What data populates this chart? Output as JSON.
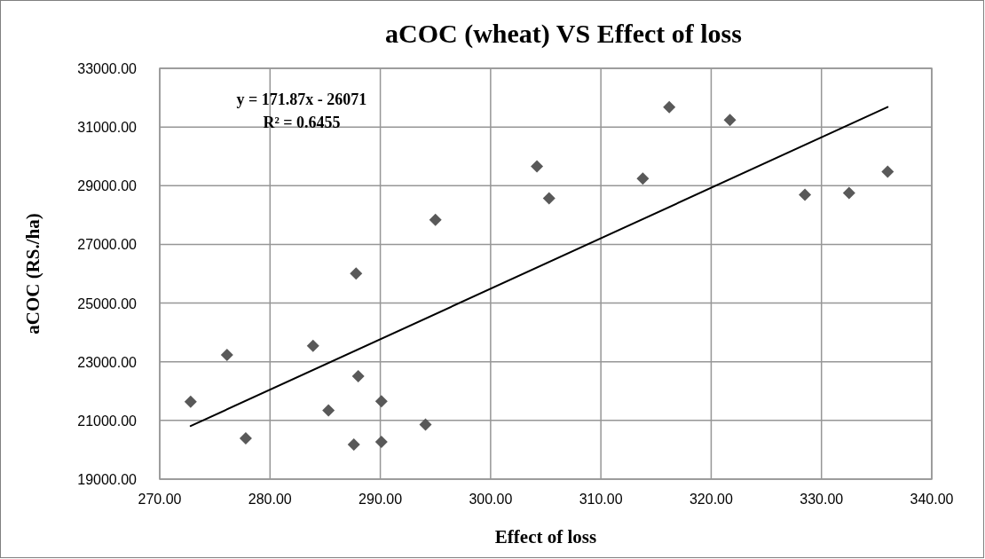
{
  "chart_data": {
    "type": "scatter",
    "title": "aCOC (wheat)  VS Effect of loss",
    "xlabel": "Effect of loss",
    "ylabel": "aCOC (RS./ha)",
    "annotations": [
      "y = 171.87x - 26071",
      "R² = 0.6455"
    ],
    "xlim": [
      270,
      340
    ],
    "ylim": [
      19000,
      33000
    ],
    "xticks": [
      {
        "value": 270,
        "label": "270.00"
      },
      {
        "value": 280,
        "label": "280.00"
      },
      {
        "value": 290,
        "label": "290.00"
      },
      {
        "value": 300,
        "label": "300.00"
      },
      {
        "value": 310,
        "label": "310.00"
      },
      {
        "value": 320,
        "label": "320.00"
      },
      {
        "value": 330,
        "label": "330.00"
      },
      {
        "value": 340,
        "label": "340.00"
      }
    ],
    "yticks": [
      {
        "value": 19000,
        "label": "19000.00"
      },
      {
        "value": 21000,
        "label": "21000.00"
      },
      {
        "value": 23000,
        "label": "23000.00"
      },
      {
        "value": 25000,
        "label": "25000.00"
      },
      {
        "value": 27000,
        "label": "27000.00"
      },
      {
        "value": 29000,
        "label": "29000.00"
      },
      {
        "value": 31000,
        "label": "31000.00"
      },
      {
        "value": 33000,
        "label": "33000.00"
      }
    ],
    "grid": true,
    "marker": "diamond",
    "series": [
      {
        "color": "#595959",
        "x": [
          272.8,
          276.1,
          277.8,
          283.9,
          285.3,
          288.0,
          287.6,
          290.1,
          290.1,
          294.1,
          287.8,
          295.0,
          304.2,
          305.3,
          313.8,
          316.2,
          321.7,
          328.5,
          332.5,
          336.0
        ],
        "values": [
          21640,
          23230,
          20390,
          23540,
          21340,
          22510,
          20180,
          21650,
          20270,
          20860,
          26010,
          27840,
          29660,
          28570,
          29240,
          31680,
          31240,
          28690,
          28750,
          29480
        ]
      },
      {
        "type": "line",
        "color": "#000000",
        "marker": "none",
        "line_style": "solid",
        "x": [
          272.8,
          336.0
        ],
        "values": [
          20810,
          31680
        ]
      }
    ]
  }
}
